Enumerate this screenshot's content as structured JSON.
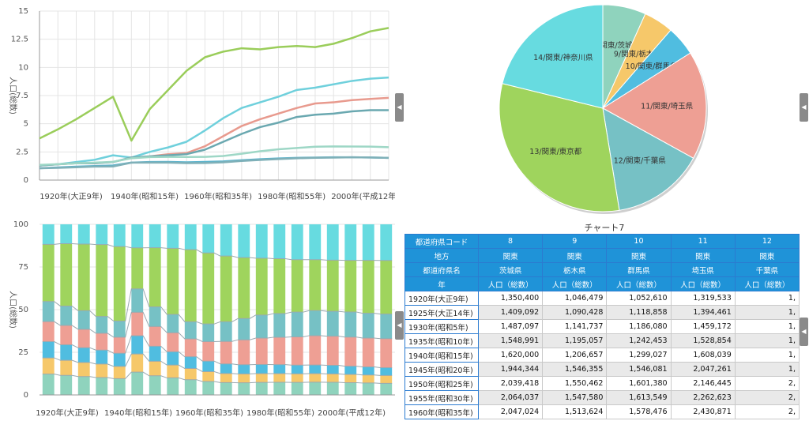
{
  "chart_data": [
    {
      "type": "line",
      "ylabel": "人口(総数)",
      "ylim": [
        0,
        15
      ],
      "yticks": [
        "0",
        "2.5",
        "5",
        "7.5",
        "10",
        "12.5",
        "15"
      ],
      "x": [
        1920,
        1925,
        1930,
        1935,
        1940,
        1945,
        1950,
        1955,
        1960,
        1965,
        1970,
        1975,
        1980,
        1985,
        1990,
        1995,
        2000,
        2005,
        2010,
        2015
      ],
      "xtick_labels": [
        "1920年(大正9年)",
        "1940年(昭和15年)",
        "1960年(昭和35年)",
        "1980年(昭和55年)",
        "2000年(平成12年)"
      ],
      "grid": true,
      "series": [
        {
          "name": "13/関東/東京都",
          "color": "#9acd5a",
          "values": [
            3.7,
            4.5,
            5.4,
            6.4,
            7.4,
            3.5,
            6.3,
            8.0,
            9.7,
            10.9,
            11.4,
            11.7,
            11.6,
            11.8,
            11.9,
            11.8,
            12.1,
            12.6,
            13.2,
            13.5
          ]
        },
        {
          "name": "14/関東/神奈川県",
          "color": "#6fd0dc",
          "values": [
            1.3,
            1.4,
            1.6,
            1.8,
            2.2,
            2.0,
            2.5,
            2.9,
            3.4,
            4.4,
            5.5,
            6.4,
            6.9,
            7.4,
            8.0,
            8.2,
            8.5,
            8.8,
            9.0,
            9.1
          ]
        },
        {
          "name": "11/関東/埼玉県",
          "color": "#e89a8e",
          "values": [
            1.3,
            1.4,
            1.5,
            1.5,
            1.6,
            2.0,
            2.1,
            2.3,
            2.4,
            3.0,
            3.9,
            4.8,
            5.4,
            5.9,
            6.4,
            6.8,
            6.9,
            7.1,
            7.2,
            7.3
          ]
        },
        {
          "name": "12/関東/千葉県",
          "color": "#6aa8b0",
          "values": [
            1.3,
            1.4,
            1.5,
            1.5,
            1.6,
            2.0,
            2.1,
            2.2,
            2.3,
            2.7,
            3.4,
            4.1,
            4.7,
            5.1,
            5.6,
            5.8,
            5.9,
            6.1,
            6.2,
            6.2
          ]
        },
        {
          "name": "8/関東/茨城県",
          "color": "#9ed7c6",
          "values": [
            1.35,
            1.41,
            1.49,
            1.55,
            1.62,
            1.94,
            2.04,
            2.06,
            2.05,
            2.06,
            2.14,
            2.34,
            2.56,
            2.73,
            2.85,
            2.96,
            2.99,
            2.98,
            2.97,
            2.92
          ]
        },
        {
          "name": "10/関東/群馬県",
          "color": "#5ab3cc",
          "values": [
            1.05,
            1.12,
            1.19,
            1.24,
            1.3,
            1.55,
            1.6,
            1.61,
            1.58,
            1.61,
            1.66,
            1.76,
            1.85,
            1.92,
            1.97,
            2.0,
            2.02,
            2.02,
            2.01,
            1.97
          ]
        },
        {
          "name": "9/関東/栃木県",
          "color": "#7fb0b8",
          "values": [
            1.05,
            1.09,
            1.14,
            1.2,
            1.21,
            1.55,
            1.55,
            1.55,
            1.51,
            1.52,
            1.58,
            1.7,
            1.79,
            1.87,
            1.94,
            1.98,
            2.0,
            2.02,
            2.01,
            1.97
          ]
        }
      ]
    },
    {
      "type": "pie",
      "slices": [
        {
          "label": "8/関東/茨城県",
          "value": 2.9,
          "color": "#8fd3bd"
        },
        {
          "label": "9/関東/栃木県",
          "value": 2.0,
          "color": "#f6c86a"
        },
        {
          "label": "10/関東/群馬県",
          "value": 2.0,
          "color": "#50bde0"
        },
        {
          "label": "11/関東/埼玉県",
          "value": 7.3,
          "color": "#ee9f94"
        },
        {
          "label": "12/関東/千葉県",
          "value": 6.2,
          "color": "#76c1c5"
        },
        {
          "label": "13/関東/東京都",
          "value": 13.5,
          "color": "#9fd45d"
        },
        {
          "label": "14/関東/神奈川県",
          "value": 9.1,
          "color": "#67dbe0"
        }
      ]
    },
    {
      "type": "bar",
      "stacked": true,
      "percent": true,
      "ylabel": "人口(総数)",
      "ylim": [
        0,
        100
      ],
      "yticks": [
        "0",
        "25",
        "50",
        "75",
        "100"
      ],
      "xtick_labels": [
        "1920年(大正9年)",
        "1940年(昭和15年)",
        "1960年(昭和35年)",
        "1980年(昭和55年)",
        "2000年(平成12年)"
      ],
      "series_colors": [
        "#8fd3bd",
        "#f6c86a",
        "#50bde0",
        "#ee9f94",
        "#76c1c5",
        "#9fd45d",
        "#67dbe0"
      ]
    }
  ],
  "table": {
    "title": "チャート7",
    "header_labels": [
      "都道府県コード",
      "地方",
      "都道府県名",
      "年"
    ],
    "columns": [
      {
        "code": "8",
        "region": "関東",
        "name": "茨城県",
        "measure": "人口（総数）"
      },
      {
        "code": "9",
        "region": "関東",
        "name": "栃木県",
        "measure": "人口（総数）"
      },
      {
        "code": "10",
        "region": "関東",
        "name": "群馬県",
        "measure": "人口（総数）"
      },
      {
        "code": "11",
        "region": "関東",
        "name": "埼玉県",
        "measure": "人口（総数）"
      },
      {
        "code": "12",
        "region": "関東",
        "name": "千葉県",
        "measure": "人口（総数）"
      }
    ],
    "rows": [
      {
        "year": "1920年(大正9年)",
        "values": [
          "1,350,400",
          "1,046,479",
          "1,052,610",
          "1,319,533",
          "1,"
        ]
      },
      {
        "year": "1925年(大正14年)",
        "values": [
          "1,409,092",
          "1,090,428",
          "1,118,858",
          "1,394,461",
          "1,"
        ]
      },
      {
        "year": "1930年(昭和5年)",
        "values": [
          "1,487,097",
          "1,141,737",
          "1,186,080",
          "1,459,172",
          "1,"
        ]
      },
      {
        "year": "1935年(昭和10年)",
        "values": [
          "1,548,991",
          "1,195,057",
          "1,242,453",
          "1,528,854",
          "1,"
        ]
      },
      {
        "year": "1940年(昭和15年)",
        "values": [
          "1,620,000",
          "1,206,657",
          "1,299,027",
          "1,608,039",
          "1,"
        ]
      },
      {
        "year": "1945年(昭和20年)",
        "values": [
          "1,944,344",
          "1,546,355",
          "1,546,081",
          "2,047,261",
          "1,"
        ]
      },
      {
        "year": "1950年(昭和25年)",
        "values": [
          "2,039,418",
          "1,550,462",
          "1,601,380",
          "2,146,445",
          "2,"
        ]
      },
      {
        "year": "1955年(昭和30年)",
        "values": [
          "2,064,037",
          "1,547,580",
          "1,613,549",
          "2,262,623",
          "2,"
        ]
      },
      {
        "year": "1960年(昭和35年)",
        "values": [
          "2,047,024",
          "1,513,624",
          "1,578,476",
          "2,430,871",
          "2,"
        ]
      }
    ]
  },
  "tab_glyph": "◀"
}
